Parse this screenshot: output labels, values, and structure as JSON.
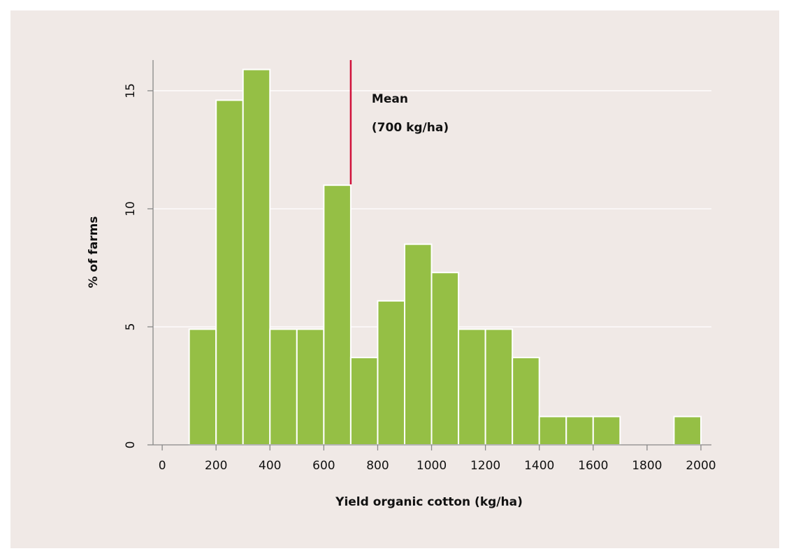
{
  "chart_data": {
    "type": "histogram",
    "xlabel": "Yield organic cotton (kg/ha)",
    "ylabel": "% of farms",
    "bins": [
      100,
      200,
      300,
      400,
      500,
      600,
      700,
      800,
      900,
      1000,
      1100,
      1200,
      1300,
      1400,
      1500,
      1600,
      1700,
      1800,
      1900,
      2000
    ],
    "counts": [
      4.9,
      14.6,
      15.9,
      4.9,
      4.9,
      11.0,
      3.7,
      6.1,
      8.5,
      7.3,
      4.9,
      4.9,
      3.7,
      1.2,
      1.2,
      1.2,
      0,
      0,
      1.2
    ],
    "color": "#95bf45",
    "xlim": [
      -34,
      2039
    ],
    "ylim": [
      0,
      16.3
    ],
    "xticks": [
      0,
      200,
      400,
      600,
      800,
      1000,
      1200,
      1400,
      1600,
      1800,
      2000
    ],
    "yticks": [
      0,
      5,
      10,
      15
    ],
    "grid": true,
    "mean": {
      "value": 700,
      "label": "Mean",
      "detail": "(700 kg/ha)",
      "color": "#d0103a"
    }
  }
}
